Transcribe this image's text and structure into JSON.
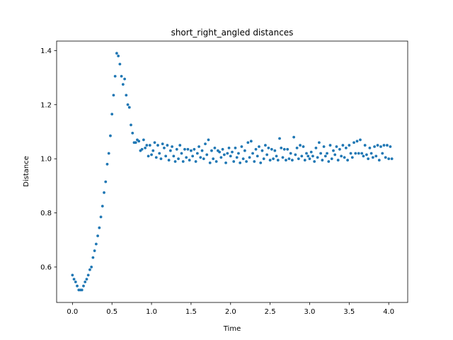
{
  "chart_data": {
    "type": "scatter",
    "title": "short_right_angled distances",
    "x_label": "Time",
    "y_label": "Distance",
    "color": "#1f77b4",
    "grid": false,
    "xlim": [
      -0.2,
      4.24
    ],
    "ylim": [
      0.469,
      1.435
    ],
    "xticks": [
      {
        "value": 0,
        "label": "0.0"
      },
      {
        "value": 0.5,
        "label": "0.5"
      },
      {
        "value": 1,
        "label": "1.0"
      },
      {
        "value": 1.5,
        "label": "1.5"
      },
      {
        "value": 2,
        "label": "2.0"
      },
      {
        "value": 2.5,
        "label": "2.5"
      },
      {
        "value": 3,
        "label": "3.0"
      },
      {
        "value": 3.5,
        "label": "3.5"
      },
      {
        "value": 4,
        "label": "4.0"
      }
    ],
    "yticks": [
      {
        "value": 0.6,
        "label": "0.6"
      },
      {
        "value": 0.8,
        "label": "0.8"
      },
      {
        "value": 1,
        "label": "1.0"
      },
      {
        "value": 1.2,
        "label": "1.2"
      },
      {
        "value": 1.4,
        "label": "1.4"
      }
    ],
    "x": [
      0,
      0.02,
      0.04,
      0.06,
      0.08,
      0.1,
      0.12,
      0.14,
      0.16,
      0.18,
      0.2,
      0.22,
      0.24,
      0.26,
      0.28,
      0.3,
      0.32,
      0.34,
      0.36,
      0.38,
      0.4,
      0.42,
      0.44,
      0.46,
      0.48,
      0.5,
      0.52,
      0.54,
      0.56,
      0.58,
      0.6,
      0.62,
      0.64,
      0.66,
      0.68,
      0.7,
      0.72,
      0.74,
      0.76,
      0.78,
      0.8,
      0.82,
      0.84,
      0.86,
      0.88,
      0.9,
      0.92,
      0.94,
      0.96,
      0.98,
      1.0,
      1.02,
      1.04,
      1.06,
      1.08,
      1.1,
      1.12,
      1.14,
      1.16,
      1.18,
      1.2,
      1.22,
      1.24,
      1.26,
      1.28,
      1.3,
      1.32,
      1.34,
      1.36,
      1.38,
      1.4,
      1.42,
      1.44,
      1.46,
      1.48,
      1.5,
      1.52,
      1.54,
      1.56,
      1.58,
      1.6,
      1.62,
      1.64,
      1.66,
      1.68,
      1.7,
      1.72,
      1.74,
      1.76,
      1.78,
      1.8,
      1.82,
      1.84,
      1.86,
      1.88,
      1.9,
      1.92,
      1.94,
      1.96,
      1.98,
      2.0,
      2.02,
      2.04,
      2.06,
      2.08,
      2.1,
      2.12,
      2.14,
      2.16,
      2.18,
      2.2,
      2.22,
      2.24,
      2.26,
      2.28,
      2.3,
      2.32,
      2.34,
      2.36,
      2.38,
      2.4,
      2.42,
      2.44,
      2.46,
      2.48,
      2.5,
      2.52,
      2.54,
      2.56,
      2.58,
      2.6,
      2.62,
      2.64,
      2.66,
      2.68,
      2.7,
      2.72,
      2.74,
      2.76,
      2.78,
      2.8,
      2.82,
      2.84,
      2.86,
      2.88,
      2.9,
      2.92,
      2.94,
      2.96,
      2.98,
      3.0,
      3.02,
      3.04,
      3.06,
      3.08,
      3.1,
      3.12,
      3.14,
      3.16,
      3.18,
      3.2,
      3.22,
      3.24,
      3.26,
      3.28,
      3.3,
      3.32,
      3.34,
      3.36,
      3.38,
      3.4,
      3.42,
      3.44,
      3.46,
      3.48,
      3.5,
      3.52,
      3.54,
      3.56,
      3.58,
      3.6,
      3.62,
      3.64,
      3.66,
      3.68,
      3.7,
      3.72,
      3.74,
      3.76,
      3.78,
      3.8,
      3.82,
      3.84,
      3.86,
      3.88,
      3.9,
      3.92,
      3.94,
      3.96,
      3.98,
      4.0,
      4.02,
      4.04
    ],
    "values": [
      0.57,
      0.555,
      0.545,
      0.53,
      0.515,
      0.515,
      0.515,
      0.53,
      0.545,
      0.555,
      0.57,
      0.59,
      0.6,
      0.635,
      0.66,
      0.685,
      0.715,
      0.745,
      0.785,
      0.825,
      0.875,
      0.915,
      0.98,
      1.02,
      1.085,
      1.165,
      1.235,
      1.305,
      1.39,
      1.38,
      1.35,
      1.305,
      1.275,
      1.295,
      1.235,
      1.2,
      1.19,
      1.125,
      1.095,
      1.06,
      1.06,
      1.07,
      1.065,
      1.03,
      1.035,
      1.07,
      1.04,
      1.05,
      1.01,
      1.05,
      1.015,
      1.03,
      1.06,
      1.005,
      1.05,
      1.02,
      1.0,
      1.055,
      1.04,
      1.01,
      1.05,
      0.995,
      1.03,
      1.045,
      1.01,
      0.99,
      1.035,
      1.0,
      1.05,
      1.02,
      0.99,
      1.035,
      1.005,
      1.035,
      0.995,
      1.03,
      1.01,
      1.035,
      0.99,
      1.02,
      1.045,
      1.005,
      1.03,
      1.0,
      1.055,
      1.015,
      1.07,
      0.985,
      1.03,
      1.0,
      1.04,
      0.99,
      1.03,
      1.025,
      1.005,
      1.035,
      1.015,
      0.985,
      1.02,
      1.04,
      1.01,
      1.025,
      0.99,
      1.04,
      1.005,
      1.02,
      0.985,
      1.045,
      1.0,
      1.03,
      0.99,
      1.06,
      1.005,
      1.065,
      1.02,
      0.99,
      1.035,
      1.01,
      1.045,
      0.985,
      1.03,
      1.0,
      1.05,
      1.015,
      1.04,
      0.995,
      1.035,
      1.0,
      1.03,
      1.01,
      0.995,
      1.075,
      1.04,
      1.005,
      1.035,
      0.995,
      1.035,
      1.0,
      1.02,
      0.995,
      1.08,
      1.015,
      1.04,
      1.0,
      1.05,
      1.01,
      1.045,
      0.995,
      1.02,
      1.01,
      1.0,
      1.025,
      1.01,
      0.99,
      1.04,
      1.005,
      1.06,
      1.02,
      0.995,
      1.045,
      1.01,
      1.02,
      0.99,
      1.05,
      1.0,
      1.03,
      1.015,
      1.045,
      0.995,
      1.035,
      1.01,
      1.05,
      1.005,
      1.04,
      0.995,
      1.05,
      1.02,
      1.005,
      1.06,
      1.02,
      1.065,
      1.02,
      1.07,
      1.02,
      1.01,
      1.05,
      1.015,
      1.0,
      1.04,
      1.02,
      1.005,
      1.045,
      1.01,
      1.05,
      0.995,
      1.045,
      1.02,
      1.05,
      1.005,
      1.05,
      1.0,
      1.045,
      1.0
    ]
  }
}
